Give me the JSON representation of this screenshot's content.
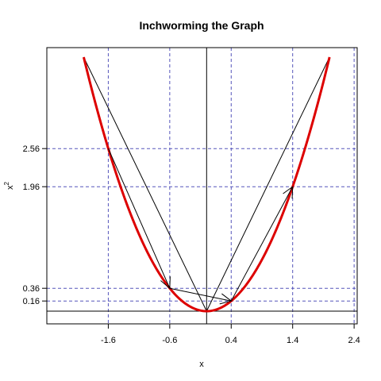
{
  "chart_data": {
    "type": "line",
    "title": "Inchworming the Graph",
    "xlabel": "x",
    "ylabel": "x",
    "ylabel_superscript": "2",
    "xlim": [
      -2.6,
      2.45
    ],
    "ylim": [
      -0.2,
      4.15
    ],
    "x_ticks": [
      -1.6,
      -0.6,
      0.4,
      1.4,
      2.4
    ],
    "x_tick_labels": [
      "-1.6",
      "-0.6",
      "0.4",
      "1.4",
      "2.4"
    ],
    "y_ticks": [
      0.16,
      0.36,
      1.96,
      2.56
    ],
    "y_tick_labels": [
      "0.16",
      "0.36",
      "1.96",
      "2.56"
    ],
    "curve": {
      "name": "",
      "function": "x^2",
      "x_range": [
        -2.0,
        2.0
      ],
      "color": "#dd0000"
    },
    "points": [
      {
        "x": -1.6,
        "y": 2.56
      },
      {
        "x": -0.6,
        "y": 0.36
      },
      {
        "x": 0.4,
        "y": 0.16
      },
      {
        "x": 1.4,
        "y": 1.96
      }
    ],
    "tangent_lines": [
      {
        "from": [
          -2.0,
          4.0
        ],
        "to": [
          0.0,
          0.0
        ]
      },
      {
        "from": [
          0.0,
          0.0
        ],
        "to": [
          2.0,
          4.0
        ]
      }
    ],
    "arrows": [
      {
        "from": [
          -1.6,
          2.56
        ],
        "to": [
          -0.6,
          0.36
        ]
      },
      {
        "from": [
          -0.6,
          0.36
        ],
        "to": [
          0.4,
          0.16
        ]
      },
      {
        "from": [
          0.4,
          0.16
        ],
        "to": [
          1.4,
          1.96
        ]
      }
    ],
    "reference_vertical_x": [
      -1.6,
      -0.6,
      0.4,
      1.4,
      2.4
    ],
    "reference_horizontal_y": [
      0.16,
      0.36,
      1.96,
      2.56
    ],
    "axis_lines": {
      "x": 0,
      "y": 0
    },
    "colors": {
      "curve": "#dd0000",
      "reference_lines": "#5555bb",
      "axes": "#000000",
      "arrows": "#000000"
    },
    "grid": false,
    "legend": "none"
  }
}
